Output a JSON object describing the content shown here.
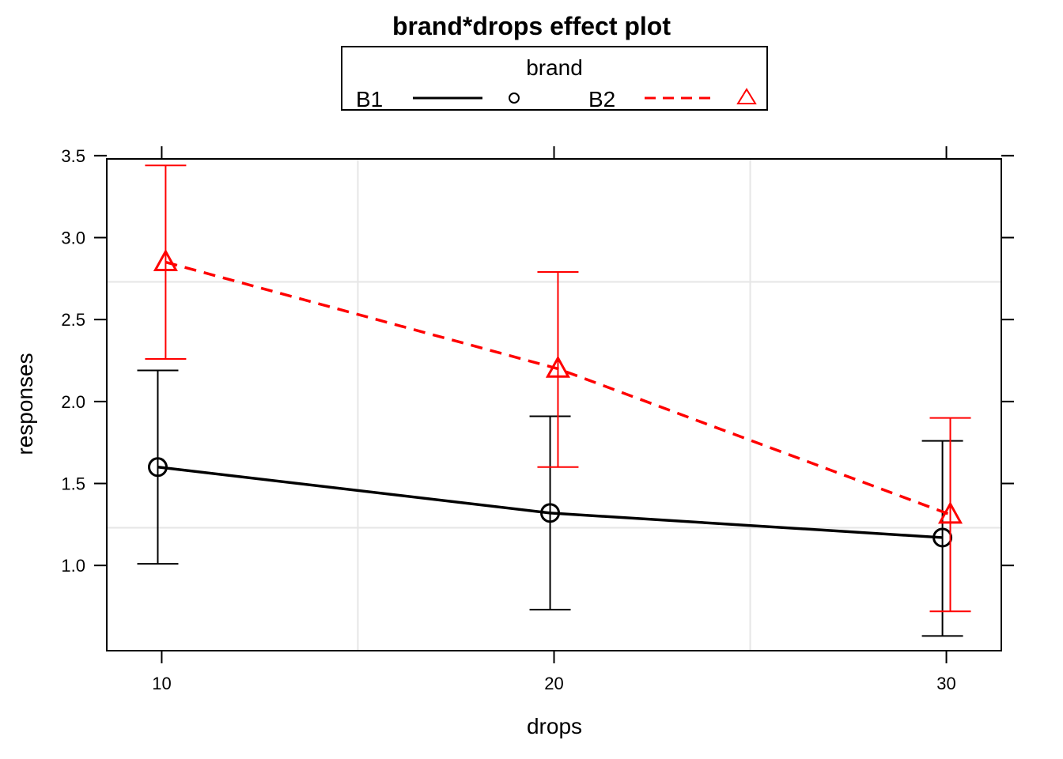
{
  "chart_data": {
    "type": "line",
    "title": "brand*drops effect plot",
    "xlabel": "drops",
    "ylabel": "responses",
    "x": [
      10,
      20,
      30
    ],
    "x_ticks": [
      "10",
      "20",
      "30"
    ],
    "y_ticks": [
      "1.0",
      "1.5",
      "2.0",
      "2.5",
      "3.0",
      "3.5"
    ],
    "y_tick_values": [
      1.0,
      1.5,
      2.0,
      2.5,
      3.0,
      3.5
    ],
    "xlim": [
      8.6,
      31.4
    ],
    "ylim": [
      0.48,
      3.48
    ],
    "grid": true,
    "legend": {
      "title": "brand",
      "placement": "top"
    },
    "series": [
      {
        "name": "B1",
        "color": "#000000",
        "line": "solid",
        "marker": "circle",
        "x": [
          9.9,
          19.9,
          29.9
        ],
        "values": [
          1.6,
          1.32,
          1.17
        ],
        "lower": [
          1.01,
          0.73,
          0.57
        ],
        "upper": [
          2.19,
          1.91,
          1.76
        ]
      },
      {
        "name": "B2",
        "color": "#ff0000",
        "line": "dashed",
        "marker": "triangle",
        "x": [
          10.1,
          20.1,
          30.1
        ],
        "values": [
          2.85,
          2.2,
          1.31
        ],
        "lower": [
          2.26,
          1.6,
          0.72
        ],
        "upper": [
          3.44,
          2.79,
          1.9
        ]
      }
    ]
  }
}
